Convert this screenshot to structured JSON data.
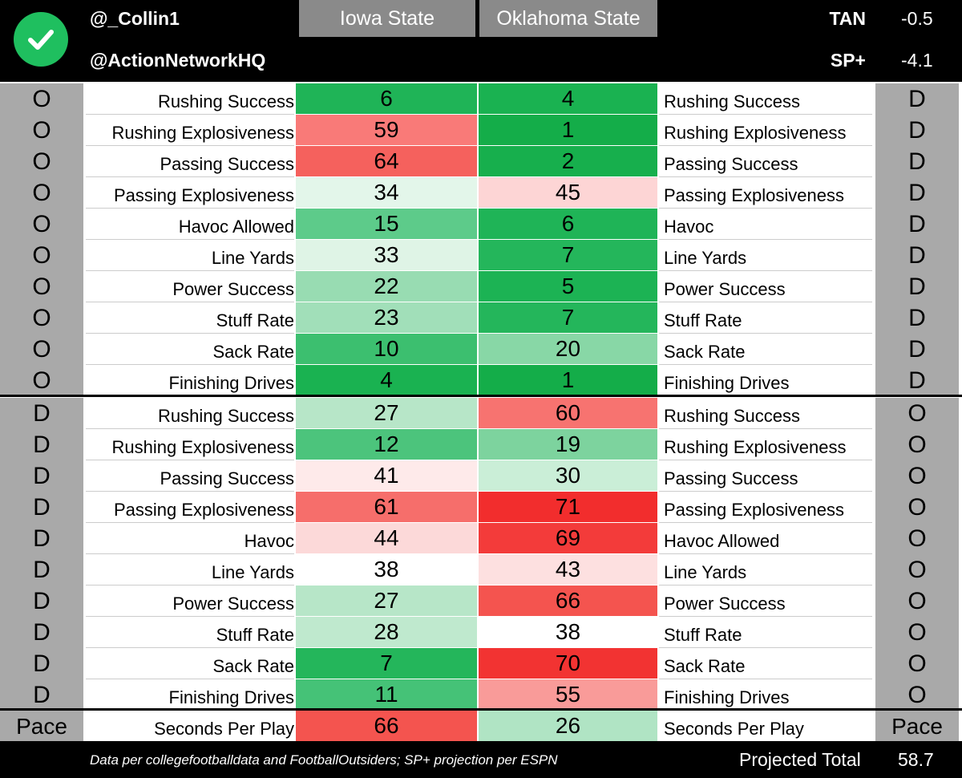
{
  "header": {
    "handle1": "@_Collin1",
    "handle2": "@ActionNetworkHQ",
    "team_a": "Iowa State",
    "team_b": "Oklahoma State",
    "tan_label": "TAN",
    "tan_value": "-0.5",
    "sp_label": "SP+",
    "sp_value": "-4.1",
    "logo_icon": "checkmark-circle-icon"
  },
  "colors": {
    "green_dark": "#1aa84a",
    "green": "#3cbf6a",
    "green_mid": "#6fd193",
    "green_light": "#a8e3bd",
    "green_pale": "#d7f2e0",
    "white": "#ffffff",
    "red_pale": "#fde3e3",
    "red_light": "#fbb3b3",
    "red_mid": "#f7807d",
    "red": "#f4504c",
    "red_dark": "#f22a2a"
  },
  "rows": [
    {
      "left_side": "O",
      "left_label": "Rushing Success",
      "a": "6",
      "a_color": "#1fb457",
      "b": "4",
      "b_color": "#1ab251",
      "right_label": "Rushing Success",
      "right_side": "D"
    },
    {
      "left_side": "O",
      "left_label": "Rushing Explosiveness",
      "a": "59",
      "a_color": "#f97a78",
      "b": "1",
      "b_color": "#14ad49",
      "right_label": "Rushing Explosiveness",
      "right_side": "D"
    },
    {
      "left_side": "O",
      "left_label": "Passing Success",
      "a": "64",
      "a_color": "#f5615d",
      "b": "2",
      "b_color": "#17af4d",
      "right_label": "Passing Success",
      "right_side": "D"
    },
    {
      "left_side": "O",
      "left_label": "Passing Explosiveness",
      "a": "34",
      "a_color": "#e3f6ea",
      "b": "45",
      "b_color": "#fdd5d5",
      "right_label": "Passing Explosiveness",
      "right_side": "D"
    },
    {
      "left_side": "O",
      "left_label": "Havoc Allowed",
      "a": "15",
      "a_color": "#5dcb8a",
      "b": "6",
      "b_color": "#1fb457",
      "right_label": "Havoc",
      "right_side": "D"
    },
    {
      "left_side": "O",
      "left_label": "Line Yards",
      "a": "33",
      "a_color": "#dff4e6",
      "b": "7",
      "b_color": "#24b65b",
      "right_label": "Line Yards",
      "right_side": "D"
    },
    {
      "left_side": "O",
      "left_label": "Power Success",
      "a": "22",
      "a_color": "#98dcb2",
      "b": "5",
      "b_color": "#1cb354",
      "right_label": "Power Success",
      "right_side": "D"
    },
    {
      "left_side": "O",
      "left_label": "Stuff Rate",
      "a": "23",
      "a_color": "#a1dfb9",
      "b": "7",
      "b_color": "#24b65b",
      "right_label": "Stuff Rate",
      "right_side": "D"
    },
    {
      "left_side": "O",
      "left_label": "Sack Rate",
      "a": "10",
      "a_color": "#3cbf6f",
      "b": "20",
      "b_color": "#88d7a6",
      "right_label": "Sack Rate",
      "right_side": "D"
    },
    {
      "left_side": "O",
      "left_label": "Finishing Drives",
      "a": "4",
      "a_color": "#1ab251",
      "b": "1",
      "b_color": "#14ad49",
      "right_label": "Finishing Drives",
      "right_side": "D"
    },
    {
      "left_side": "D",
      "left_label": "Rushing Success",
      "a": "27",
      "a_color": "#b7e6c8",
      "b": "60",
      "b_color": "#f77370",
      "right_label": "Rushing Success",
      "right_side": "O"
    },
    {
      "left_side": "D",
      "left_label": "Rushing Explosiveness",
      "a": "12",
      "a_color": "#4cc47c",
      "b": "19",
      "b_color": "#7dd39e",
      "right_label": "Rushing Explosiveness",
      "right_side": "O"
    },
    {
      "left_side": "D",
      "left_label": "Passing Success",
      "a": "41",
      "a_color": "#feeaea",
      "b": "30",
      "b_color": "#caeed7",
      "right_label": "Passing Success",
      "right_side": "O"
    },
    {
      "left_side": "D",
      "left_label": "Passing Explosiveness",
      "a": "61",
      "a_color": "#f66e6b",
      "b": "71",
      "b_color": "#f22d2d",
      "right_label": "Passing Explosiveness",
      "right_side": "O"
    },
    {
      "left_side": "D",
      "left_label": "Havoc",
      "a": "44",
      "a_color": "#fcd9d9",
      "b": "69",
      "b_color": "#f33b3a",
      "right_label": "Havoc Allowed",
      "right_side": "O"
    },
    {
      "left_side": "D",
      "left_label": "Line Yards",
      "a": "38",
      "a_color": "#ffffff",
      "b": "43",
      "b_color": "#fde0e0",
      "right_label": "Line Yards",
      "right_side": "O"
    },
    {
      "left_side": "D",
      "left_label": "Power Success",
      "a": "27",
      "a_color": "#b7e6c8",
      "b": "66",
      "b_color": "#f4544f",
      "right_label": "Power Success",
      "right_side": "O"
    },
    {
      "left_side": "D",
      "left_label": "Stuff Rate",
      "a": "28",
      "a_color": "#bfe9ce",
      "b": "38",
      "b_color": "#ffffff",
      "right_label": "Stuff Rate",
      "right_side": "O"
    },
    {
      "left_side": "D",
      "left_label": "Sack Rate",
      "a": "7",
      "a_color": "#24b65b",
      "b": "70",
      "b_color": "#f23332",
      "right_label": "Sack Rate",
      "right_side": "O"
    },
    {
      "left_side": "D",
      "left_label": "Finishing Drives",
      "a": "11",
      "a_color": "#45c277",
      "b": "55",
      "b_color": "#f99b99",
      "right_label": "Finishing Drives",
      "right_side": "O"
    }
  ],
  "pace": {
    "left_side": "Pace",
    "left_label": "Seconds Per Play",
    "a": "66",
    "a_color": "#f4544f",
    "b": "26",
    "b_color": "#b0e4c4",
    "right_label": "Seconds Per Play",
    "right_side": "Pace"
  },
  "footer": {
    "note": "Data per collegefootballdata and FootballOutsiders; SP+ projection per ESPN",
    "projected_label": "Projected Total",
    "projected_value": "58.7"
  }
}
